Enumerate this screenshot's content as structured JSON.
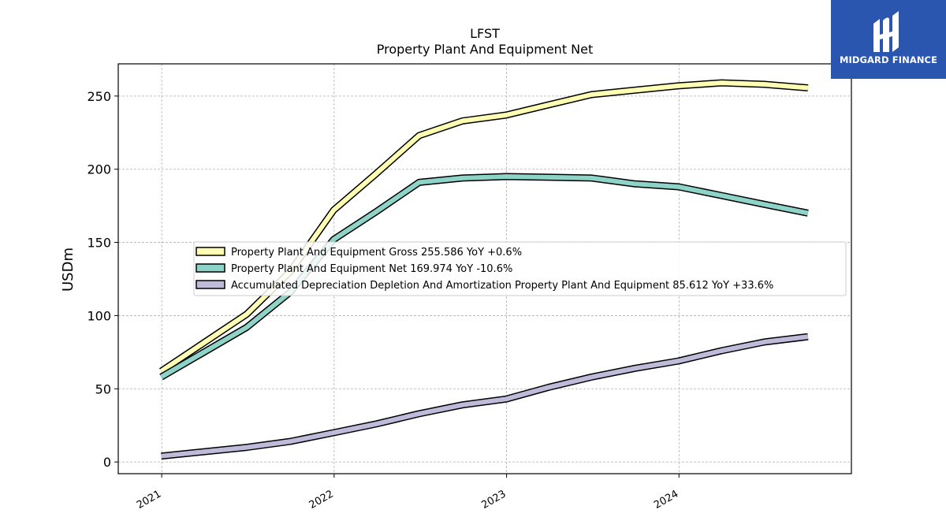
{
  "chart_data": {
    "type": "line",
    "title": "LFST",
    "subtitle": "Property Plant And Equipment Net",
    "ylabel": "USDm",
    "xlabel": "",
    "ylim": [
      -8,
      272
    ],
    "xlim": [
      "2020-10-01",
      "2024-12-31"
    ],
    "yticks": [
      0,
      50,
      100,
      150,
      200,
      250
    ],
    "xticks": [
      "2021-01-01",
      "2022-01-01",
      "2023-01-01",
      "2024-01-01"
    ],
    "xtick_labels": [
      "2021",
      "2022",
      "2023",
      "2024"
    ],
    "grid": true,
    "legend_position": "center",
    "x": [
      "2020-12-31",
      "2021-06-30",
      "2021-09-30",
      "2021-12-31",
      "2022-03-31",
      "2022-06-30",
      "2022-09-30",
      "2022-12-31",
      "2023-03-31",
      "2023-06-30",
      "2023-09-30",
      "2023-12-31",
      "2024-03-31",
      "2024-06-30",
      "2024-09-30"
    ],
    "series": [
      {
        "name": "Property Plant And Equipment Gross",
        "legend_label": "Property Plant And Equipment Gross  255.586 YoY +0.6%",
        "color": "#ffffb3",
        "values": [
          62,
          101,
          130,
          172,
          197,
          223,
          233,
          237,
          244,
          251,
          254,
          257,
          259,
          258,
          255.6
        ]
      },
      {
        "name": "Property Plant And Equipment Net",
        "legend_label": "Property Plant And Equipment Net  169.974 YoY -10.6%",
        "color": "#8dd3c7",
        "values": [
          58,
          92,
          116,
          152,
          171,
          191,
          194,
          195,
          194.5,
          194,
          190,
          188,
          182,
          176,
          170.0
        ]
      },
      {
        "name": "Accumulated Depreciation Depletion And Amortization Property Plant And Equipment",
        "legend_label": "Accumulated Depreciation Depletion And Amortization Property Plant And Equipment  85.612 YoY +33.6%",
        "color": "#bebada",
        "values": [
          4,
          10,
          14,
          20,
          26,
          33,
          39,
          43,
          51,
          58,
          64,
          69,
          76,
          82,
          85.6
        ]
      }
    ]
  },
  "brand": {
    "name": "MIDGARD FINANCE",
    "bg_color": "#2a56b0",
    "icon": "midgard-logo-icon"
  }
}
